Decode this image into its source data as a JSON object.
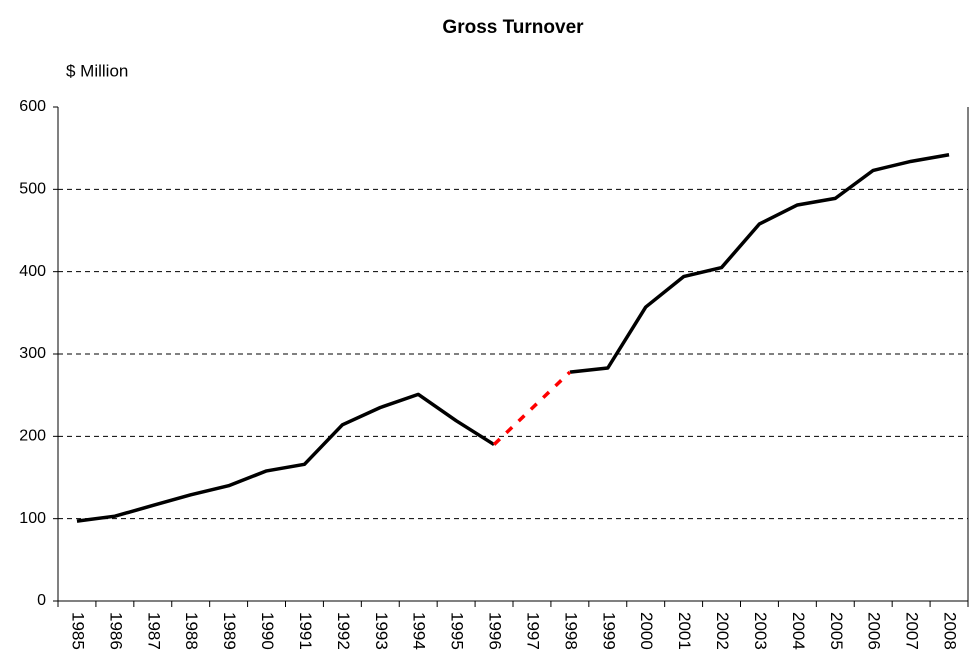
{
  "chart_data": {
    "type": "line",
    "title": "Gross Turnover",
    "y_axis_label": "$ Million",
    "categories": [
      "1985",
      "1986",
      "1987",
      "1988",
      "1989",
      "1990",
      "1991",
      "1992",
      "1993",
      "1994",
      "1995",
      "1996",
      "1997",
      "1998",
      "1999",
      "2000",
      "2001",
      "2002",
      "2003",
      "2004",
      "2005",
      "2006",
      "2007",
      "2008"
    ],
    "series": [
      {
        "color": "#000000",
        "values": [
          97,
          103,
          116,
          129,
          140,
          158,
          166,
          214,
          235,
          251,
          219,
          190,
          null,
          278,
          283,
          357,
          394,
          405,
          458,
          481,
          489,
          523,
          534,
          542
        ]
      }
    ],
    "gap_line": {
      "color": "#ff0000",
      "dashed": true
    },
    "ylim": [
      0,
      600
    ],
    "yticks": [
      0,
      100,
      200,
      300,
      400,
      500,
      600
    ],
    "grid": true,
    "grid_style": "dashed"
  }
}
